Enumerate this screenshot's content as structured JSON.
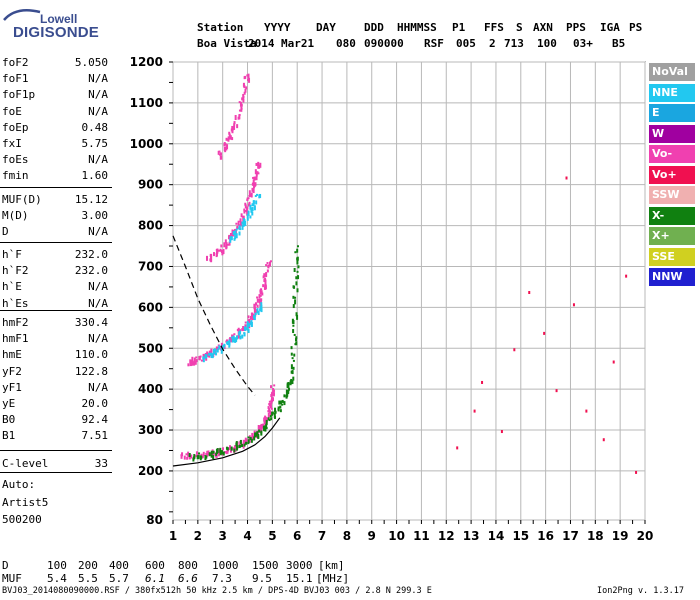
{
  "logo": {
    "top": "Lowell",
    "bottom": "DIGISONDE"
  },
  "header": {
    "row1": [
      "Station",
      "YYYY",
      "DAY",
      "DDD",
      "HHMMSS",
      "P1",
      "FFS",
      "S",
      "AXN",
      "PPS",
      "IGA",
      "PS"
    ],
    "row2": [
      "Boa Vista",
      "2014",
      "Mar21",
      "080",
      "090000",
      "RSF",
      "005",
      "2",
      "713",
      "100",
      "03+",
      "B5"
    ]
  },
  "params": {
    "g1": [
      {
        "k": "foF2",
        "v": "5.050"
      },
      {
        "k": "foF1",
        "v": "N/A"
      },
      {
        "k": "foF1p",
        "v": "N/A"
      },
      {
        "k": "foE",
        "v": "N/A"
      },
      {
        "k": "foEp",
        "v": "0.48"
      },
      {
        "k": "fxI",
        "v": "5.75"
      },
      {
        "k": "foEs",
        "v": "N/A"
      },
      {
        "k": "fmin",
        "v": "1.60"
      }
    ],
    "g2": [
      {
        "k": "MUF(D)",
        "v": "15.12"
      },
      {
        "k": "M(D)",
        "v": "3.00"
      },
      {
        "k": "D",
        "v": "N/A"
      }
    ],
    "g3": [
      {
        "k": "h`F",
        "v": "232.0"
      },
      {
        "k": "h`F2",
        "v": "232.0"
      },
      {
        "k": "h`E",
        "v": "N/A"
      },
      {
        "k": "h`Es",
        "v": "N/A"
      }
    ],
    "g4": [
      {
        "k": "hmF2",
        "v": "330.4"
      },
      {
        "k": "hmF1",
        "v": "N/A"
      },
      {
        "k": "hmE",
        "v": "110.0"
      },
      {
        "k": "yF2",
        "v": "122.8"
      },
      {
        "k": "yF1",
        "v": "N/A"
      },
      {
        "k": "yE",
        "v": "20.0"
      },
      {
        "k": "B0",
        "v": "92.4"
      },
      {
        "k": "B1",
        "v": "7.51"
      }
    ],
    "g5": [
      {
        "k": "C-level",
        "v": "33"
      }
    ]
  },
  "auto": {
    "line1": "Auto:",
    "line2": "Artist5",
    "line3": "500200"
  },
  "legend": [
    {
      "name": "NoVal",
      "color": "#a0a0a0"
    },
    {
      "name": "NNE",
      "color": "#22c8f0"
    },
    {
      "name": "E",
      "color": "#1aa6e0"
    },
    {
      "name": "W",
      "color": "#a000a0"
    },
    {
      "name": "Vo-",
      "color": "#f040b0"
    },
    {
      "name": "Vo+",
      "color": "#f01050"
    },
    {
      "name": "SSW",
      "color": "#f0b0b0"
    },
    {
      "name": "X-",
      "color": "#108010"
    },
    {
      "name": "X+",
      "color": "#70b050"
    },
    {
      "name": "SSE",
      "color": "#d0d020"
    },
    {
      "name": "NNW",
      "color": "#2020d0"
    }
  ],
  "muf_table": {
    "d_label": "D",
    "d_values": [
      "100",
      "200",
      "400",
      "600",
      "800",
      "1000",
      "1500",
      "3000"
    ],
    "d_unit": "[km]",
    "muf_label": "MUF",
    "muf_values": [
      "5.4",
      "5.5",
      "5.7",
      "6.1",
      "6.6",
      "7.3",
      "9.5",
      "15.1"
    ],
    "muf_unit": "[MHz]"
  },
  "footer": {
    "left": "BVJ03_2014080090000.RSF / 380fx512h 50 kHz 2.5 km / DPS-4D BVJ03 003 / 2.8 N 299.3 E",
    "right": "Ion2Png v. 1.3.17"
  },
  "chart_data": {
    "type": "scatter",
    "xlim": [
      1,
      20
    ],
    "ylim": [
      80,
      1200
    ],
    "x_ticks": [
      1,
      2,
      3,
      4,
      5,
      6,
      7,
      8,
      9,
      10,
      11,
      12,
      13,
      14,
      15,
      16,
      17,
      18,
      19,
      20
    ],
    "y_ticks": [
      80,
      200,
      300,
      400,
      500,
      600,
      700,
      800,
      900,
      1000,
      1100,
      1200
    ],
    "grid": true,
    "series": [
      {
        "name": "Vo-",
        "traces": [
          [
            [
              1.3,
              240
            ],
            [
              2,
              242
            ],
            [
              2.6,
              248
            ],
            [
              3.2,
              256
            ],
            [
              3.7,
              268
            ],
            [
              4.1,
              284
            ],
            [
              4.4,
              300
            ],
            [
              4.6,
              318
            ],
            [
              4.8,
              338
            ],
            [
              4.95,
              380
            ],
            [
              5.0,
              410
            ]
          ],
          [
            [
              1.6,
              465
            ],
            [
              2,
              478
            ],
            [
              2.5,
              493
            ],
            [
              3,
              512
            ],
            [
              3.5,
              535
            ],
            [
              3.9,
              560
            ],
            [
              4.2,
              590
            ],
            [
              4.45,
              625
            ],
            [
              4.65,
              665
            ],
            [
              4.85,
              720
            ]
          ],
          [
            [
              2.4,
              720
            ],
            [
              2.9,
              745
            ],
            [
              3.3,
              775
            ],
            [
              3.7,
              815
            ],
            [
              4.0,
              860
            ],
            [
              4.25,
              910
            ],
            [
              4.45,
              960
            ]
          ],
          [
            [
              2.8,
              970
            ],
            [
              3.2,
              1010
            ],
            [
              3.5,
              1060
            ],
            [
              3.8,
              1120
            ],
            [
              4.0,
              1180
            ]
          ]
        ]
      },
      {
        "name": "NNE",
        "traces": [
          [
            [
              2.2,
              480
            ],
            [
              2.8,
              500
            ],
            [
              3.3,
              520
            ],
            [
              3.8,
              545
            ],
            [
              4.2,
              575
            ],
            [
              4.6,
              610
            ]
          ],
          [
            [
              3.3,
              770
            ],
            [
              3.7,
              800
            ],
            [
              4.1,
              840
            ],
            [
              4.4,
              880
            ]
          ]
        ]
      },
      {
        "name": "X-",
        "traces": [
          [
            [
              1.7,
              238
            ],
            [
              2.5,
              245
            ],
            [
              3.3,
              258
            ],
            [
              4.0,
              278
            ],
            [
              4.6,
              305
            ],
            [
              5.1,
              345
            ],
            [
              5.5,
              390
            ],
            [
              5.7,
              420
            ],
            [
              5.85,
              520
            ],
            [
              5.9,
              650
            ],
            [
              5.95,
              760
            ]
          ]
        ]
      },
      {
        "name": "Vo+",
        "points": [
          [
            13.1,
            350
          ],
          [
            13.4,
            420
          ],
          [
            14.2,
            300
          ],
          [
            14.7,
            500
          ],
          [
            15.3,
            640
          ],
          [
            15.9,
            540
          ],
          [
            16.4,
            400
          ],
          [
            17.1,
            610
          ],
          [
            17.6,
            350
          ],
          [
            18.3,
            280
          ],
          [
            18.7,
            470
          ],
          [
            19.2,
            680
          ],
          [
            19.6,
            200
          ],
          [
            12.4,
            260
          ],
          [
            16.8,
            920
          ]
        ]
      }
    ],
    "curves": [
      {
        "name": "trace",
        "points": [
          [
            1,
            212
          ],
          [
            2,
            220
          ],
          [
            3,
            232
          ],
          [
            3.8,
            248
          ],
          [
            4.3,
            264
          ],
          [
            4.7,
            284
          ],
          [
            5.0,
            305
          ],
          [
            5.3,
            330
          ]
        ]
      },
      {
        "name": "dashed",
        "points": [
          [
            1,
            775
          ],
          [
            1.5,
            700
          ],
          [
            2,
            622
          ],
          [
            2.5,
            557
          ],
          [
            3,
            498
          ],
          [
            3.5,
            450
          ],
          [
            4,
            407
          ],
          [
            4.3,
            385
          ]
        ]
      }
    ]
  }
}
